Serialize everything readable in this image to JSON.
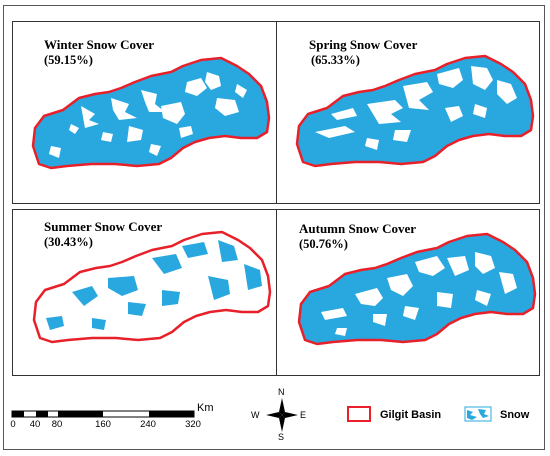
{
  "panels": [
    {
      "title": "Winter Snow Cover",
      "percent": "(59.15%)",
      "snow_cover_pct": 59.15
    },
    {
      "title": "Spring Snow Cover",
      "percent": "(65.33%)",
      "snow_cover_pct": 65.33
    },
    {
      "title": "Summer Snow Cover",
      "percent": "(30.43%)",
      "snow_cover_pct": 30.43
    },
    {
      "title": "Autumn Snow Cover",
      "percent": "(50.76%)",
      "snow_cover_pct": 50.76
    }
  ],
  "scale_bar": {
    "unit": "Km",
    "ticks": [
      "0",
      "40",
      "80",
      "160",
      "240",
      "320"
    ]
  },
  "north_arrow": {
    "n": "N",
    "s": "S",
    "e": "E",
    "w": "W"
  },
  "legend": {
    "basin_label": "Gilgit Basin",
    "snow_label": "Snow"
  },
  "colors": {
    "snow": "#29a8e0",
    "basin_outline": "#e8202a",
    "background": "#ffffff"
  }
}
